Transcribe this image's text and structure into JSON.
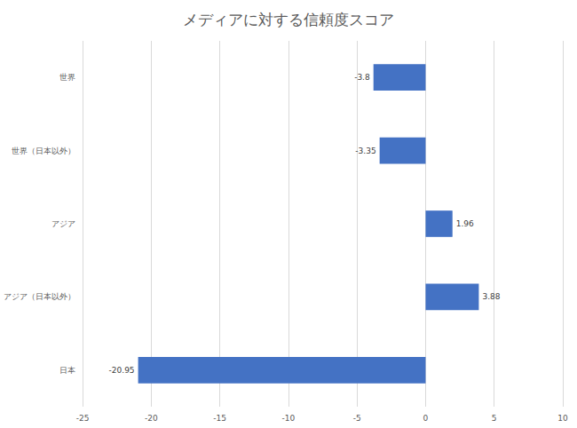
{
  "chart_data": {
    "type": "bar",
    "title": "メディアに対する信頼度スコア",
    "categories": [
      "世界",
      "世界（日本以外）",
      "アジア",
      "アジア（日本以外）",
      "日本"
    ],
    "values": [
      -3.8,
      -3.35,
      1.96,
      3.88,
      -20.95
    ],
    "color": "#4472c4",
    "xlim": [
      -25,
      10
    ],
    "xticks": [
      -25,
      -20,
      -15,
      -10,
      -5,
      0,
      5,
      10
    ],
    "grid": true,
    "orientation": "horizontal",
    "data_labels": true
  }
}
